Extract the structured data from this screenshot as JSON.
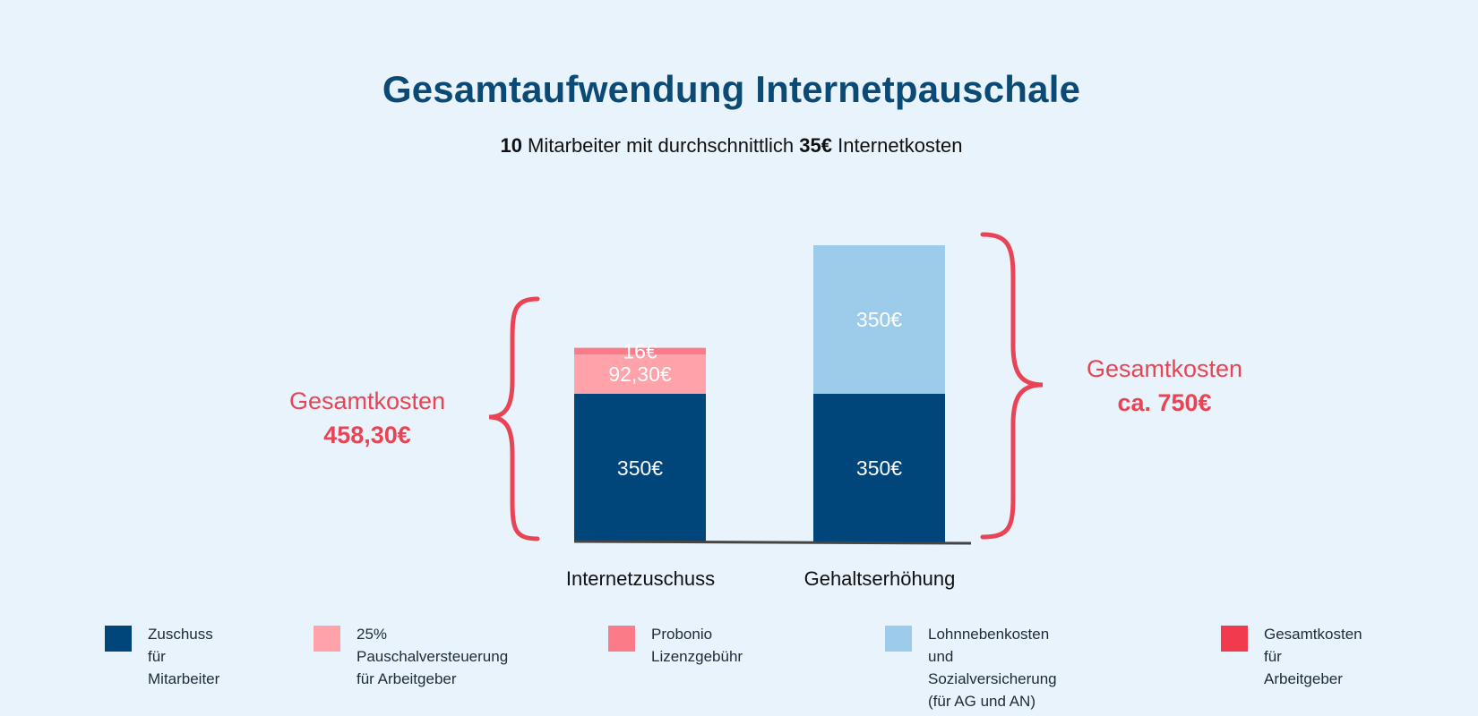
{
  "header": {
    "title": "Gesamtaufwendung Internetpauschale",
    "subtitle_count": "10",
    "subtitle_part1": " Mitarbeiter mit durchschnittlich ",
    "subtitle_price": "35€",
    "subtitle_part2": " Internetkosten"
  },
  "totals": {
    "left_label": "Gesamtkosten",
    "left_value": "458,30€",
    "right_label": "Gesamtkosten",
    "right_value": "ca. 750€"
  },
  "colors": {
    "navy": "#00467a",
    "light_pink": "#ffa2aa",
    "pink": "#fb7b88",
    "light_blue": "#9dcbea",
    "red": "#f13a4e",
    "brace": "#e84455",
    "axis": "#444444"
  },
  "chart_data": {
    "type": "bar",
    "stacked": true,
    "categories": [
      "Internetzuschuss",
      "Gehaltserhöhung"
    ],
    "series": [
      {
        "name": "Zuschuss für Mitarbeiter",
        "color": "#00467a",
        "values": [
          350,
          350
        ],
        "labels": [
          "350€",
          "350€"
        ]
      },
      {
        "name": "25% Pauschalversteuerung für Arbeitgeber",
        "color": "#ffa2aa",
        "values": [
          92.3,
          null
        ],
        "labels": [
          "92,30€",
          null
        ]
      },
      {
        "name": "Probonio Lizenzgebühr",
        "color": "#fb7b88",
        "values": [
          16,
          null
        ],
        "labels": [
          "16€",
          null
        ]
      },
      {
        "name": "Lohnnebenkosten und Sozialversicherung (für AG und AN)",
        "color": "#9dcbea",
        "values": [
          null,
          350
        ],
        "labels": [
          null,
          "350€"
        ]
      }
    ],
    "grid": false,
    "legend_position": "bottom"
  },
  "legend": [
    {
      "label": "Zuschuss für\nMitarbeiter",
      "color": "#00467a"
    },
    {
      "label": "25% Pauschalversteuerung\nfür Arbeitgeber",
      "color": "#ffa2aa"
    },
    {
      "label": "Probonio Lizenzgebühr",
      "color": "#fb7b88"
    },
    {
      "label": "Lohnnebenkosten und\nSozialversicherung (für AG und AN)",
      "color": "#9dcbea"
    },
    {
      "label": "Gesamtkosten\nfür Arbeitgeber",
      "color": "#f13a4e"
    }
  ]
}
